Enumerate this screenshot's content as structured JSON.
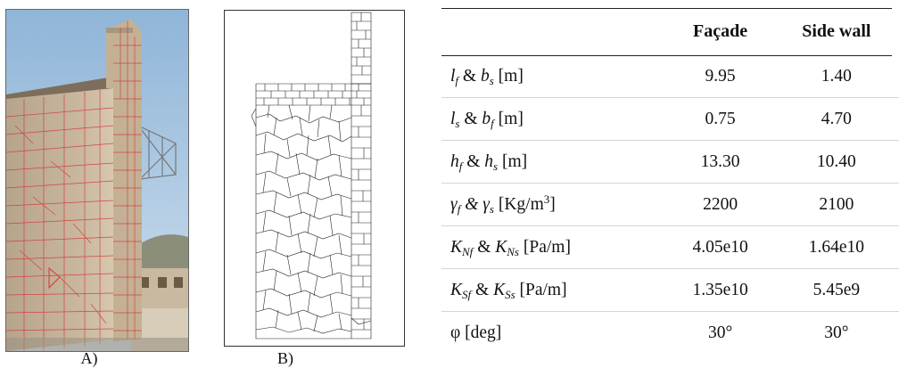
{
  "captions": {
    "a": "A)",
    "b": "B)"
  },
  "table": {
    "headers": [
      "",
      "Façade",
      "Side wall"
    ],
    "rows": [
      {
        "sym1": "l",
        "sub1": "f",
        "sym2": "b",
        "sub2": "s",
        "unit": "[m]",
        "facade": "9.95",
        "side": "1.40"
      },
      {
        "sym1": "l",
        "sub1": "s",
        "sym2": "b",
        "sub2": "f",
        "unit": "[m]",
        "facade": "0.75",
        "side": "4.70"
      },
      {
        "sym1": "h",
        "sub1": "f",
        "sym2": "h",
        "sub2": "s",
        "unit": "[m]",
        "facade": "13.30",
        "side": "10.40"
      },
      {
        "sym1": "γ",
        "sub1": "f",
        "sym2": "γ",
        "sub2": "s",
        "unit": "[Kg/m",
        "unit_sup": "3",
        "unit_end": "]",
        "facade": "2200",
        "side": "2100"
      },
      {
        "sym1": "K",
        "sub1": "Nf",
        "sym2": "K",
        "sub2": "Ns",
        "unit": "[Pa/m]",
        "facade": "4.05e10",
        "side": "1.64e10"
      },
      {
        "sym1": "K",
        "sub1": "Sf",
        "sym2": "K",
        "sub2": "Ss",
        "unit": "[Pa/m]",
        "facade": "1.35e10",
        "side": "5.45e9"
      },
      {
        "label": "φ [deg]",
        "facade": "30°",
        "side": "30°"
      }
    ]
  }
}
